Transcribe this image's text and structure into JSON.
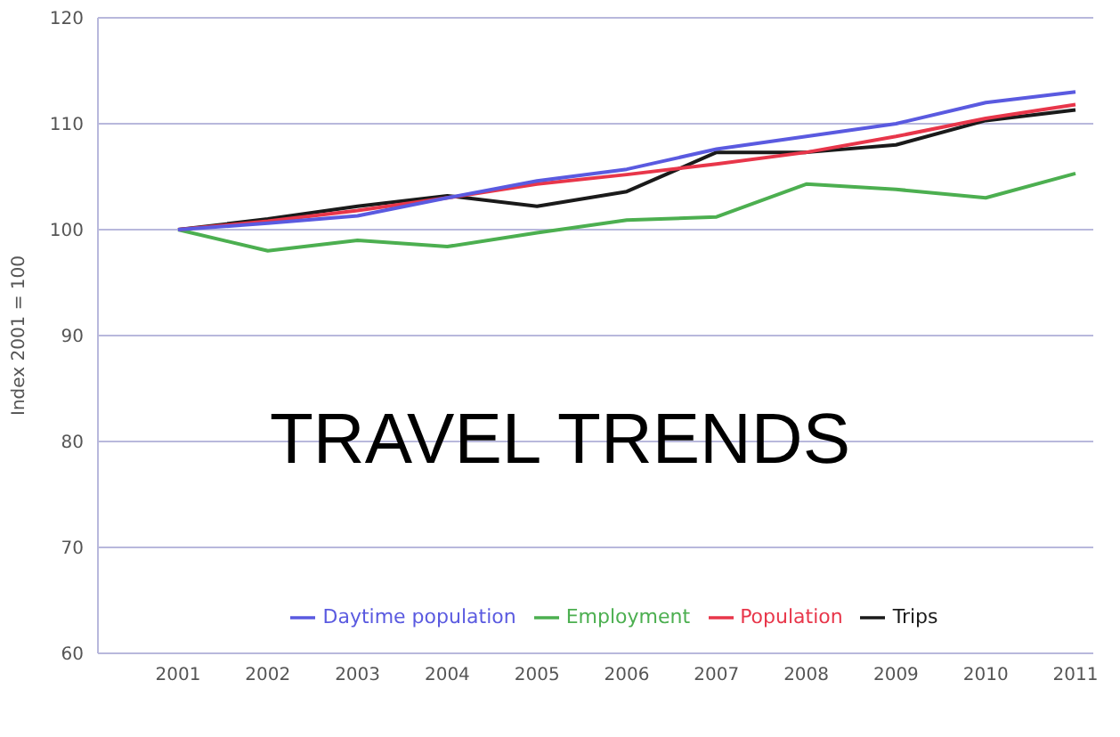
{
  "chart_data": {
    "type": "line",
    "ylabel": "Index 2001 = 100",
    "annotations": [
      "TRAVEL TRENDS"
    ],
    "categories": [
      "2001",
      "2002",
      "2003",
      "2004",
      "2005",
      "2006",
      "2007",
      "2008",
      "2009",
      "2010",
      "2011"
    ],
    "series": [
      {
        "name": "Trips",
        "color": "#1a1a1a",
        "values": [
          100,
          101,
          102.2,
          103.2,
          102.2,
          103.6,
          107.3,
          107.3,
          108,
          110.3,
          111.3
        ]
      },
      {
        "name": "Employment",
        "color": "#4caf50",
        "values": [
          100,
          98,
          99,
          98.4,
          99.7,
          100.9,
          101.2,
          104.3,
          103.8,
          103,
          105.3
        ]
      },
      {
        "name": "Population",
        "color": "#e8364a",
        "values": [
          100,
          100.8,
          101.8,
          103,
          104.3,
          105.2,
          106.2,
          107.3,
          108.8,
          110.5,
          111.8
        ]
      },
      {
        "name": "Daytime population",
        "color": "#5a5ae0",
        "values": [
          100,
          100.6,
          101.3,
          103,
          104.6,
          105.7,
          107.6,
          108.8,
          110,
          112,
          113
        ]
      }
    ],
    "ylim": [
      60,
      120
    ],
    "yticks": [
      60,
      70,
      80,
      90,
      100,
      110,
      120
    ],
    "grid": "y",
    "legend": "bottom",
    "marker": "none",
    "line_style": "solid"
  }
}
